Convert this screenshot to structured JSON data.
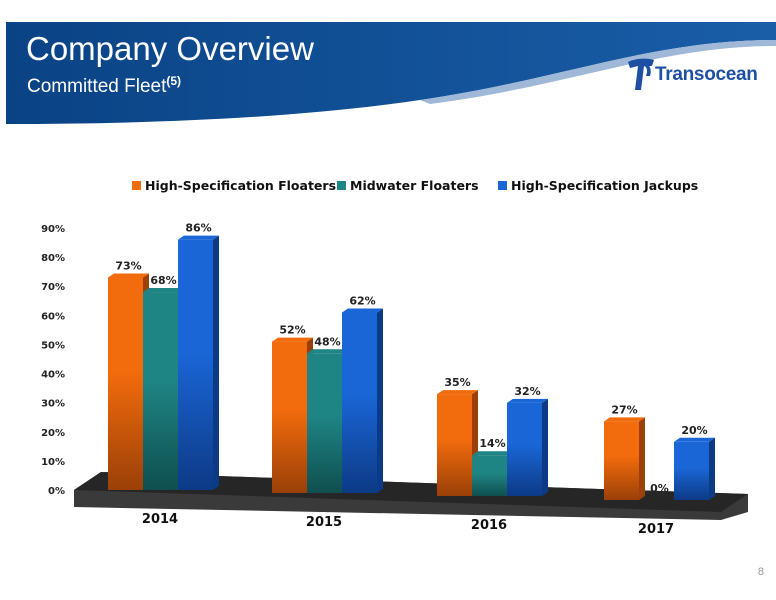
{
  "header": {
    "title": "Company Overview",
    "subtitle": "Committed Fleet",
    "footnote": "(5)",
    "logo_text": "Transocean"
  },
  "page_number": "8",
  "colors": {
    "banner": "#0c4a8c",
    "logo": "#1e4fa3"
  },
  "chart_data": {
    "type": "bar",
    "categories": [
      "2014",
      "2015",
      "2016",
      "2017"
    ],
    "series": [
      {
        "name": "High-Specification Floaters",
        "values": [
          73,
          52,
          35,
          27
        ],
        "labels": [
          "73%",
          "52%",
          "35%",
          "27%"
        ],
        "color": "#f26b0c",
        "dark": "#9a4008"
      },
      {
        "name": "Midwater Floaters",
        "values": [
          68,
          48,
          14,
          0
        ],
        "labels": [
          "68%",
          "48%",
          "14%",
          "0%"
        ],
        "color": "#1f8484",
        "dark": "#0f4f4f"
      },
      {
        "name": "High-Specification Jackups",
        "values": [
          86,
          62,
          32,
          20
        ],
        "labels": [
          "86%",
          "62%",
          "32%",
          "20%"
        ],
        "color": "#1a66d6",
        "dark": "#0c3a86"
      }
    ],
    "y_ticks": [
      "0%",
      "10%",
      "20%",
      "30%",
      "40%",
      "50%",
      "60%",
      "70%",
      "80%",
      "90%"
    ],
    "ylim": [
      0,
      90
    ],
    "legend_position": "top",
    "grid": false
  }
}
